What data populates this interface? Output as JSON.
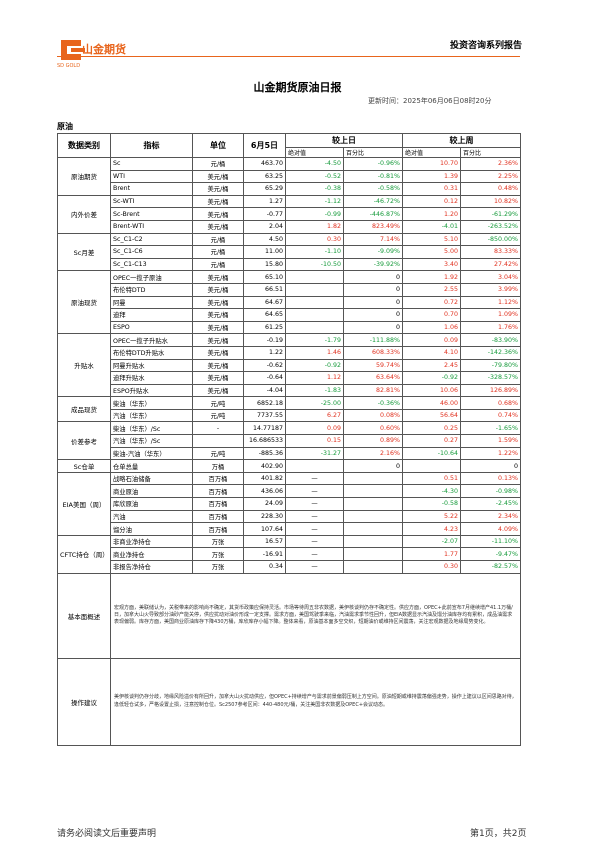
{
  "header": {
    "logo_text": "山金期货",
    "logo_sub": "SD GOLD",
    "series": "投资咨询系列报告"
  },
  "title": "山金期货原油日报",
  "update_time": "更新时间：2025年06月06日08时20分",
  "section": "原油",
  "table": {
    "columns": [
      "数据类别",
      "指标",
      "单位",
      "6月5日",
      "较上日",
      "较上周"
    ],
    "sub_columns": [
      "绝对值",
      "百分比",
      "绝对值",
      "百分比"
    ],
    "groups": [
      {
        "category": "原油期货",
        "rows": [
          [
            "Sc",
            "元/桶",
            "463.70",
            "-4.50",
            "-0.96%",
            "10.70",
            "2.36%"
          ],
          [
            "WTI",
            "美元/桶",
            "63.25",
            "-0.52",
            "-0.81%",
            "1.39",
            "2.25%"
          ],
          [
            "Brent",
            "美元/桶",
            "65.29",
            "-0.38",
            "-0.58%",
            "0.31",
            "0.48%"
          ]
        ]
      },
      {
        "category": "内外价差",
        "rows": [
          [
            "Sc-WTI",
            "美元/桶",
            "1.27",
            "-1.12",
            "-46.72%",
            "0.12",
            "10.82%"
          ],
          [
            "Sc-Brent",
            "美元/桶",
            "-0.77",
            "-0.99",
            "-446.87%",
            "1.20",
            "-61.29%"
          ],
          [
            "Brent-WTI",
            "美元/桶",
            "2.04",
            "1.82",
            "823.49%",
            "-4.01",
            "-263.52%"
          ]
        ]
      },
      {
        "category": "Sc月差",
        "rows": [
          [
            "Sc_C1-C2",
            "元/桶",
            "4.50",
            "0.30",
            "7.14%",
            "5.10",
            "-850.00%"
          ],
          [
            "Sc_C1-C6",
            "元/桶",
            "11.00",
            "-1.10",
            "-9.09%",
            "5.00",
            "83.33%"
          ],
          [
            "Sc_C1-C13",
            "元/桶",
            "15.80",
            "-10.50",
            "-39.92%",
            "3.40",
            "27.42%"
          ]
        ]
      },
      {
        "category": "原油现货",
        "rows": [
          [
            "OPEC一揽子原油",
            "美元/桶",
            "65.10",
            null,
            "0",
            "1.92",
            "3.04%"
          ],
          [
            "布伦特DTD",
            "美元/桶",
            "66.51",
            null,
            "0",
            "2.55",
            "3.99%"
          ],
          [
            "阿曼",
            "美元/桶",
            "64.67",
            null,
            "0",
            "0.72",
            "1.12%"
          ],
          [
            "迪拜",
            "美元/桶",
            "64.65",
            null,
            "0",
            "0.70",
            "1.09%"
          ],
          [
            "ESPO",
            "美元/桶",
            "61.25",
            null,
            "0",
            "1.06",
            "1.76%"
          ]
        ]
      },
      {
        "category": "升贴水",
        "rows": [
          [
            "OPEC一揽子升贴水",
            "美元/桶",
            "-0.19",
            "-1.79",
            "-111.88%",
            "0.09",
            "-83.90%"
          ],
          [
            "布伦特DTD升贴水",
            "美元/桶",
            "1.22",
            "1.46",
            "608.33%",
            "4.10",
            "-142.36%"
          ],
          [
            "阿曼升贴水",
            "美元/桶",
            "-0.62",
            "-0.92",
            "59.74%",
            "2.45",
            "-79.80%"
          ],
          [
            "迪拜升贴水",
            "美元/桶",
            "-0.64",
            "1.12",
            "63.64%",
            "-0.92",
            "-328.57%"
          ],
          [
            "ESPO升贴水",
            "美元/桶",
            "-4.04",
            "-1.83",
            "82.81%",
            "10.06",
            "126.89%"
          ]
        ]
      },
      {
        "category": "成品现货",
        "rows": [
          [
            "柴油（华东）",
            "元/吨",
            "6852.18",
            "-25.00",
            "-0.36%",
            "46.00",
            "0.68%"
          ],
          [
            "汽油（华东）",
            "元/吨",
            "7737.55",
            "6.27",
            "0.08%",
            "56.64",
            "0.74%"
          ]
        ]
      },
      {
        "category": "价差参考",
        "rows": [
          [
            "柴油（华东）/Sc",
            "-",
            "14.77187",
            "0.09",
            "0.60%",
            "0.25",
            "-1.65%"
          ],
          [
            "汽油（华东）/Sc",
            null,
            "16.686533",
            "0.15",
            "0.89%",
            "0.27",
            "1.59%"
          ],
          [
            "柴油-汽油（华东）",
            "元/吨",
            "-885.36",
            "-31.27",
            "2.16%",
            "-10.64",
            "1.22%"
          ]
        ]
      },
      {
        "category": "Sc仓单",
        "rows": [
          [
            "仓单总量",
            "万桶",
            "402.90",
            null,
            "0",
            null,
            "0"
          ]
        ]
      },
      {
        "category": "EIA美国（周）",
        "rows": [
          [
            "战略石油储备",
            "百万桶",
            "401.82",
            "—",
            null,
            "0.51",
            "0.13%"
          ],
          [
            "商业原油",
            "百万桶",
            "436.06",
            "—",
            null,
            "-4.30",
            "-0.98%"
          ],
          [
            "库欣原油",
            "百万桶",
            "24.09",
            "—",
            null,
            "-0.58",
            "-2.45%"
          ],
          [
            "汽油",
            "百万桶",
            "228.30",
            "—",
            null,
            "5.22",
            "2.34%"
          ],
          [
            "馏分油",
            "百万桶",
            "107.64",
            "—",
            null,
            "4.23",
            "4.09%"
          ]
        ]
      },
      {
        "category": "CFTC持仓（周）",
        "rows": [
          [
            "非商业净持仓",
            "万张",
            "16.57",
            "—",
            null,
            "-2.07",
            "-11.10%"
          ],
          [
            "商业净持仓",
            "万张",
            "-16.91",
            "—",
            null,
            "1.77",
            "-9.47%"
          ],
          [
            "非报告净持仓",
            "万张",
            "0.34",
            "—",
            null,
            "0.30",
            "-82.57%"
          ]
        ]
      }
    ]
  },
  "overview": {
    "label": "基本面概述",
    "text": "宏观方面，美联储认为，关税带来的影响尚不确定，其货币政策应保持灵活。市场等待周五非农数据，美伊核谈判仍存不确定性。供应方面，OPEC+此前宣布7月继续增产41.1万桶/日，加拿大山火导致部分油砂产能关停，供应扰动对油价形成一定支撑。需求方面，美国驾驶季来临，汽油需求季节性回升，但EIA数据显示汽油及馏分油库存均有累积，成品油需求表现偏弱。库存方面，美国商业原油库存下降430万桶，库欣库存小幅下降。整体来看，原油基本面多空交织，短期油价或维持区间震荡，关注宏观数据及地缘局势变化。"
  },
  "advice": {
    "label": "操作建议",
    "text": "美伊核谈判仍存分歧，地缘风险溢价有所回升，加拿大山火扰动供应，但OPEC+持续增产与需求前景偏弱压制上方空间。原油短期或维持震荡偏强走势，操作上建议以区间思路对待，逢低轻仓试多，严格设置止损，注意控制仓位。Sc2507参考区间：440-480元/桶，关注美国非农数据及OPEC+会议动态。"
  },
  "footer": {
    "left": "请务必阅读文后重要声明",
    "right": "第1页，共2页"
  }
}
